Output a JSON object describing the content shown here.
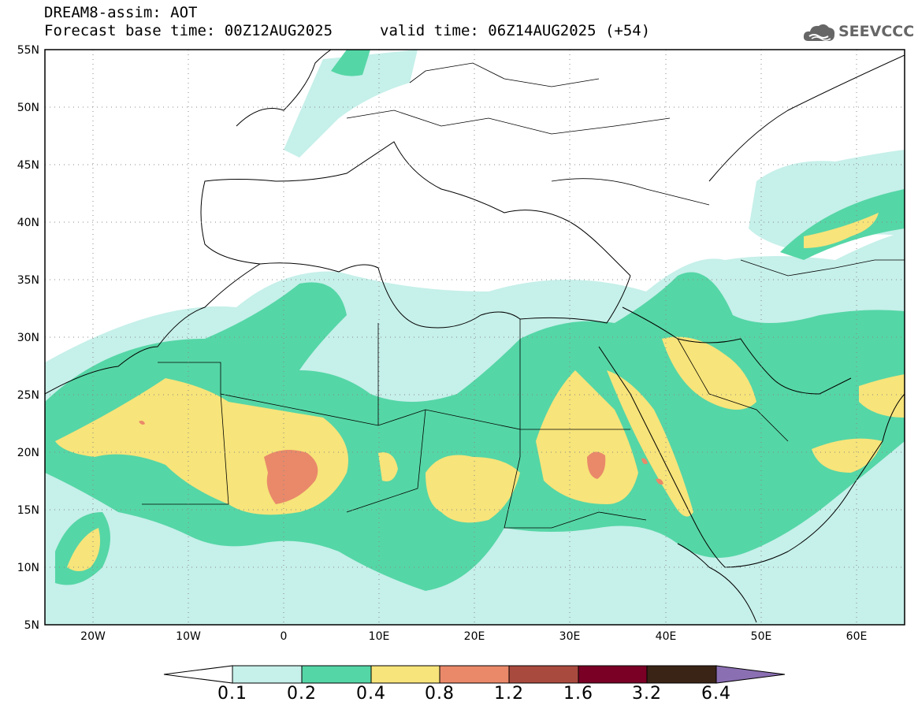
{
  "header": {
    "line1": "DREAM8-assim: AOT",
    "line2": "Forecast base time: 00Z12AUG2025",
    "valid": "valid time: 06Z14AUG2025 (+54)"
  },
  "logo": {
    "text": "SEEVCCC",
    "icon": "cloud-logo-icon"
  },
  "map": {
    "lat_ticks": [
      "55N",
      "50N",
      "45N",
      "40N",
      "35N",
      "30N",
      "25N",
      "20N",
      "15N",
      "10N",
      "5N"
    ],
    "lon_ticks": [
      "20W",
      "10W",
      "0",
      "10E",
      "20E",
      "30E",
      "40E",
      "50E",
      "60E"
    ],
    "lat_range": [
      5,
      55
    ],
    "lon_range": [
      -25,
      65
    ]
  },
  "colorbar": {
    "labels": [
      "0.1",
      "0.2",
      "0.4",
      "0.8",
      "1.2",
      "1.6",
      "3.2",
      "6.4"
    ],
    "colors": {
      "below": "#ffffff",
      "b1": "#c6f0ea",
      "b2": "#55d6a6",
      "b3": "#f7e47a",
      "b4": "#e9896a",
      "b5": "#a94a3e",
      "b6": "#7a0025",
      "b7": "#3a2416",
      "above": "#8b6fb3"
    }
  }
}
